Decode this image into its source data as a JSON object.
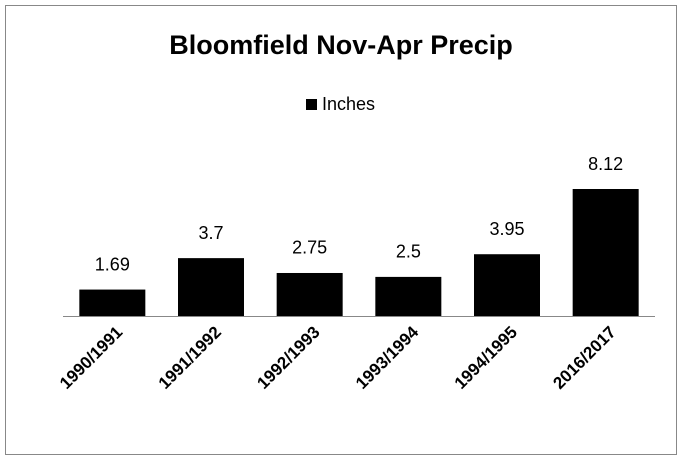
{
  "chart_data": {
    "type": "bar",
    "title": "Bloomfield Nov-Apr Precip",
    "categories": [
      "1990/1991",
      "1991/1992",
      "1992/1993",
      "1993/1994",
      "1994/1995",
      "2016/2017"
    ],
    "series": [
      {
        "name": "Inches",
        "color": "#000000",
        "values": [
          1.69,
          3.7,
          2.75,
          2.5,
          3.95,
          8.12
        ]
      }
    ],
    "legend": "top"
  }
}
